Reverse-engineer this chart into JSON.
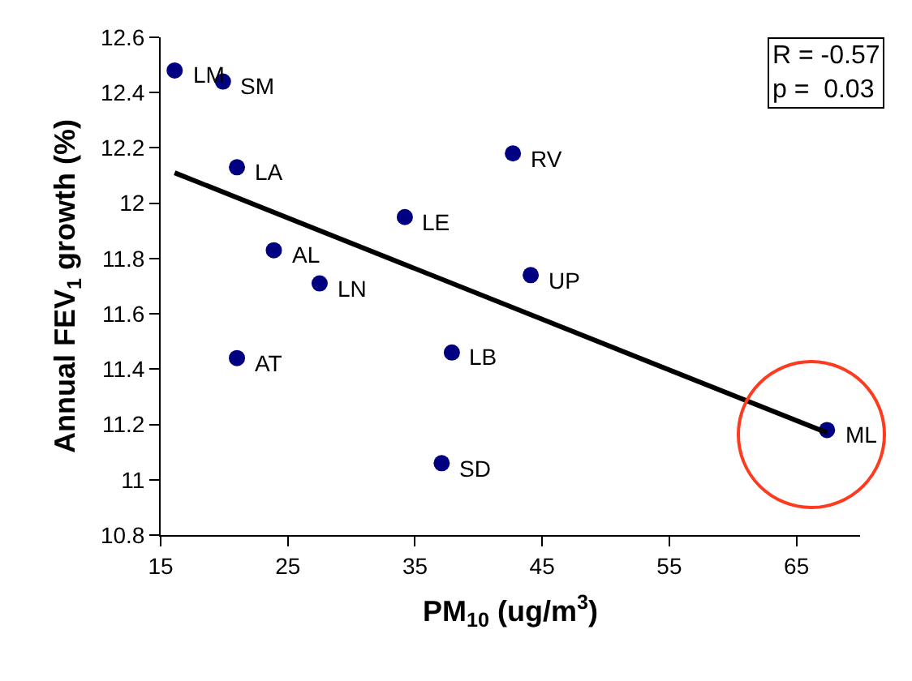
{
  "chart_data": {
    "type": "scatter",
    "xlabel": "PM$_{10}$ (ug/m$^{3}$)",
    "ylabel": "Annual FEV$_{1}$ growth (%)",
    "xlim": [
      15,
      70
    ],
    "xticks": [
      15,
      25,
      35,
      45,
      55,
      65
    ],
    "ylim": [
      10.8,
      12.6
    ],
    "yticks": [
      10.8,
      11,
      11.2,
      11.4,
      11.6,
      11.8,
      12,
      12.2,
      12.4,
      12.6
    ],
    "grid": false,
    "series": [
      {
        "color": "#000080",
        "marker": "circle",
        "x": [
          16.1,
          19.9,
          21.0,
          42.7,
          34.2,
          23.9,
          27.5,
          44.1,
          21.0,
          37.9,
          37.1,
          67.4
        ],
        "values": [
          12.48,
          12.44,
          12.13,
          12.18,
          11.95,
          11.83,
          11.71,
          11.74,
          11.44,
          11.46,
          11.06,
          11.18
        ]
      },
      {
        "type": "line",
        "color": "#000000",
        "line_style": "solid",
        "marker": "none",
        "x": [
          16.1,
          67.4
        ],
        "values": [
          12.11,
          11.17
        ]
      }
    ],
    "annotations": [
      {
        "text": "LM",
        "x": 16.1,
        "y": 12.48
      },
      {
        "text": "SM",
        "x": 19.9,
        "y": 12.44
      },
      {
        "text": "LA",
        "x": 21.0,
        "y": 12.13
      },
      {
        "text": "RV",
        "x": 42.7,
        "y": 12.18
      },
      {
        "text": "LE",
        "x": 34.2,
        "y": 11.95
      },
      {
        "text": "AL",
        "x": 23.9,
        "y": 11.83
      },
      {
        "text": "LN",
        "x": 27.5,
        "y": 11.71
      },
      {
        "text": "UP",
        "x": 44.1,
        "y": 11.74
      },
      {
        "text": "AT",
        "x": 21.0,
        "y": 11.44
      },
      {
        "text": "LB",
        "x": 37.9,
        "y": 11.46
      },
      {
        "text": "SD",
        "x": 37.1,
        "y": 11.06
      },
      {
        "text": "ML",
        "x": 67.4,
        "y": 11.18
      },
      "R = -0.57",
      "p =  0.03"
    ]
  }
}
